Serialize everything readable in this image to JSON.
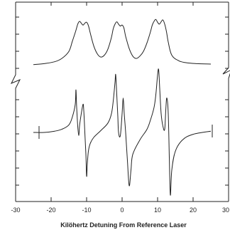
{
  "chart_data": {
    "type": "line",
    "title": "",
    "xlabel": "Kilöhertz Detuning From Reference Laser",
    "ylabel": "",
    "xlim": [
      -30,
      30
    ],
    "x_ticks": [
      "-30",
      "-20",
      "-10",
      "0",
      "10",
      "20",
      "30"
    ],
    "x_tick_values": [
      -30,
      -20,
      -10,
      0,
      10,
      20,
      30
    ],
    "grid": false,
    "legend": "none",
    "line_color": "#222222",
    "series": [
      {
        "x": [
          -25,
          -22,
          -19,
          -17,
          -15,
          -14,
          -13,
          -12.5,
          -12,
          -11.5,
          -11,
          -10.5,
          -10,
          -9.5,
          -9,
          -8,
          -7,
          -6,
          -5,
          -4,
          -3,
          -2.5,
          -2,
          -1.5,
          -1,
          -0.5,
          0,
          0.5,
          1,
          2,
          3,
          4,
          5,
          6,
          7,
          8,
          8.5,
          9,
          9.5,
          10,
          10.5,
          11,
          11.5,
          12,
          12.5,
          13,
          14,
          16,
          18,
          21,
          25
        ],
        "y": [
          0.02,
          0.04,
          0.08,
          0.15,
          0.3,
          0.52,
          0.75,
          0.88,
          0.94,
          0.9,
          0.86,
          0.9,
          0.92,
          0.85,
          0.7,
          0.42,
          0.25,
          0.18,
          0.22,
          0.35,
          0.6,
          0.78,
          0.88,
          0.93,
          0.88,
          0.84,
          0.86,
          0.8,
          0.62,
          0.36,
          0.2,
          0.15,
          0.2,
          0.3,
          0.48,
          0.72,
          0.86,
          0.94,
          0.98,
          0.92,
          0.88,
          0.93,
          0.97,
          0.88,
          0.72,
          0.5,
          0.22,
          0.1,
          0.06,
          0.04,
          0.03
        ]
      },
      {
        "x": [
          -25,
          -22,
          -19,
          -17,
          -15,
          -14,
          -13.2,
          -13,
          -12.8,
          -12.5,
          -12.2,
          -12,
          -11.5,
          -11,
          -10.8,
          -10.5,
          -10.2,
          -10,
          -9.8,
          -9.5,
          -9,
          -8,
          -6,
          -4,
          -3,
          -2.5,
          -2,
          -1.8,
          -1.5,
          -1.2,
          -1,
          -0.5,
          0,
          0.3,
          0.6,
          1,
          1.5,
          2,
          2.5,
          3,
          5,
          7,
          8,
          9,
          9.5,
          10,
          10.3,
          10.6,
          11,
          11.5,
          12,
          12.3,
          12.6,
          13,
          13.3,
          13.6,
          14,
          15,
          17,
          20,
          25
        ],
        "y": [
          0.0,
          0.0,
          0.02,
          0.05,
          0.12,
          0.25,
          0.45,
          0.68,
          0.4,
          0.1,
          -0.05,
          0.1,
          0.3,
          0.45,
          0.35,
          0.0,
          -0.35,
          -0.7,
          -0.5,
          -0.3,
          -0.18,
          -0.08,
          0.03,
          0.15,
          0.3,
          0.5,
          0.8,
          0.92,
          0.6,
          0.25,
          0.0,
          -0.05,
          0.3,
          0.55,
          0.3,
          0.0,
          -0.45,
          -0.85,
          -0.6,
          -0.35,
          -0.12,
          0.05,
          0.2,
          0.4,
          0.6,
          0.92,
          1.0,
          0.7,
          0.3,
          0.1,
          0.05,
          0.35,
          0.55,
          0.3,
          -0.4,
          -1.0,
          -0.6,
          -0.3,
          -0.12,
          -0.03,
          0.02
        ]
      }
    ]
  }
}
